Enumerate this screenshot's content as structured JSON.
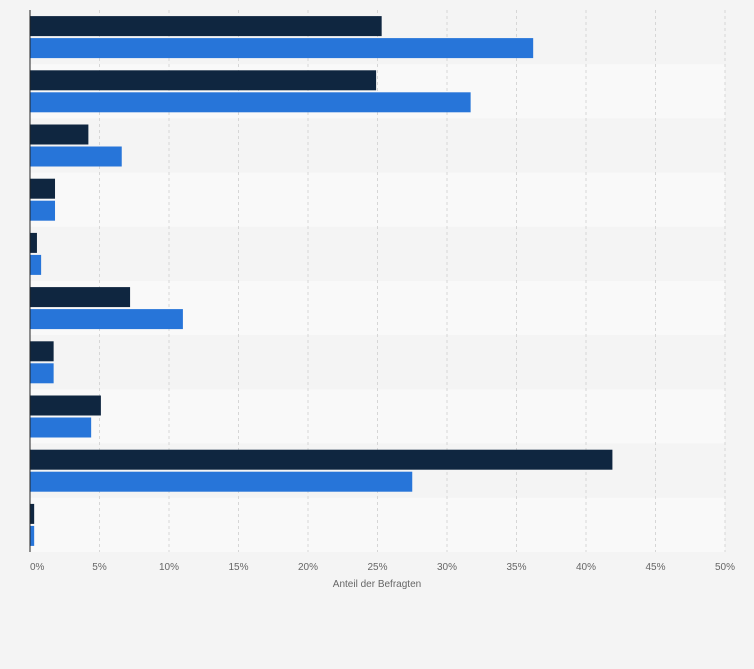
{
  "chart_data": {
    "type": "bar",
    "orientation": "horizontal",
    "title": "",
    "xlabel": "Anteil der Befragten",
    "ylabel": "",
    "xlim": [
      0,
      50
    ],
    "x_ticks": [
      "0%",
      "5%",
      "10%",
      "15%",
      "20%",
      "25%",
      "30%",
      "35%",
      "40%",
      "45%",
      "50%"
    ],
    "x_tick_values": [
      0,
      5,
      10,
      15,
      20,
      25,
      30,
      35,
      40,
      45,
      50
    ],
    "grid": true,
    "categories": [
      "",
      "",
      "",
      "",
      "",
      "",
      "",
      "",
      "",
      ""
    ],
    "series": [
      {
        "name": "",
        "color": "#0f2640",
        "values": [
          25.3,
          24.9,
          4.2,
          1.8,
          0.5,
          7.2,
          1.7,
          5.1,
          41.9,
          0.3
        ]
      },
      {
        "name": "",
        "color": "#2775d9",
        "values": [
          36.2,
          31.7,
          6.6,
          1.8,
          0.8,
          11.0,
          1.7,
          4.4,
          27.5,
          0.3
        ]
      }
    ]
  }
}
